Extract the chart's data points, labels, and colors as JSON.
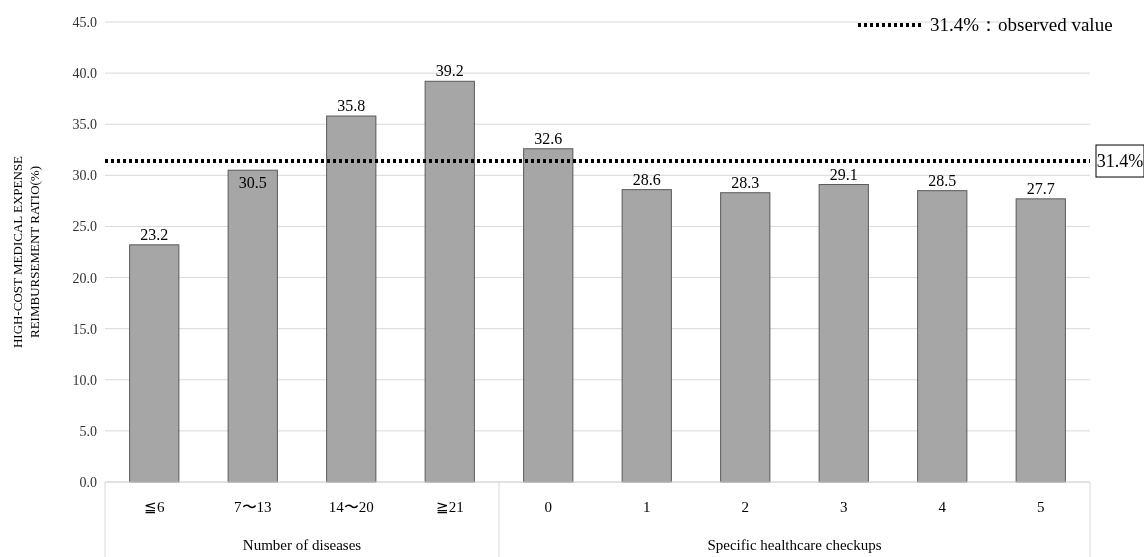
{
  "chart_data": {
    "type": "bar",
    "categories": [
      "≦6",
      "7〜13",
      "14〜20",
      "≧21",
      "0",
      "1",
      "2",
      "3",
      "4",
      "5"
    ],
    "values": [
      23.2,
      30.5,
      35.8,
      39.2,
      32.6,
      28.6,
      28.3,
      29.1,
      28.5,
      27.7
    ],
    "color": "#a6a6a6",
    "ylabel": "HIGH-COST MEDICAL EXPENSE\nREIMBURSEMENT RATIO(%)",
    "ylim": [
      0,
      45
    ],
    "yticks": [
      {
        "value": 0,
        "label": "0.0"
      },
      {
        "value": 5,
        "label": "5.0"
      },
      {
        "value": 10,
        "label": "10.0"
      },
      {
        "value": 15,
        "label": "15.0"
      },
      {
        "value": 20,
        "label": "20.0"
      },
      {
        "value": 25,
        "label": "25.0"
      },
      {
        "value": 30,
        "label": "30.0"
      },
      {
        "value": 35,
        "label": "35.0"
      },
      {
        "value": 40,
        "label": "40.0"
      },
      {
        "value": 45,
        "label": "45.0"
      }
    ],
    "grid": "y",
    "data_labels": true,
    "ref_lines": [
      {
        "axis": "y",
        "value": 31.4,
        "label": "31.4%",
        "color": "#000000",
        "line_style": "dotted"
      }
    ],
    "annotations": [
      "31.4%：observed value",
      "Number of diseases",
      "Specific healthcare checkups"
    ]
  }
}
